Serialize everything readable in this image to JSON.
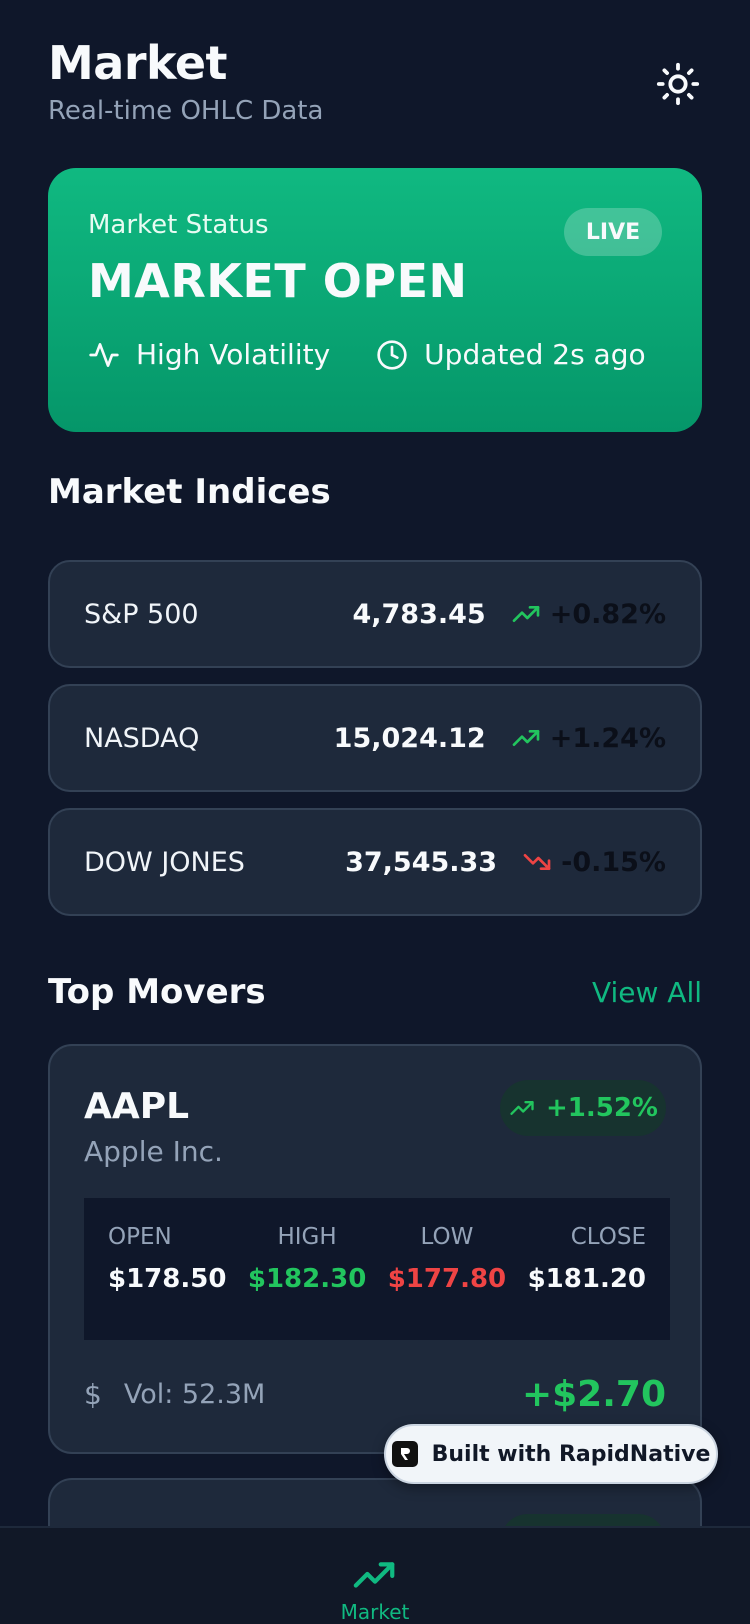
{
  "header": {
    "title": "Market",
    "subtitle": "Real-time OHLC Data",
    "theme_icon": "sun-icon"
  },
  "status": {
    "label": "Market Status",
    "value": "MARKET OPEN",
    "badge": "LIVE",
    "volatility": "High Volatility",
    "updated": "Updated 2s ago",
    "gradient_top": "#10b981",
    "gradient_bottom": "#059669"
  },
  "indices": {
    "title": "Market Indices",
    "items": [
      {
        "name": "S&P 500",
        "value": "4,783.45",
        "change": "+0.82%",
        "direction": "up"
      },
      {
        "name": "NASDAQ",
        "value": "15,024.12",
        "change": "+1.24%",
        "direction": "up"
      },
      {
        "name": "DOW JONES",
        "value": "37,545.33",
        "change": "-0.15%",
        "direction": "down"
      }
    ]
  },
  "movers": {
    "title": "Top Movers",
    "view_all": "View All",
    "items": [
      {
        "ticker": "AAPL",
        "company": "Apple Inc.",
        "change": "+1.52%",
        "ohlc": {
          "open_label": "OPEN",
          "open": "$178.50",
          "high_label": "HIGH",
          "high": "$182.30",
          "low_label": "LOW",
          "low": "$177.80",
          "close_label": "CLOSE",
          "close": "$181.20"
        },
        "currency_icon": "$",
        "volume": "Vol: 52.3M",
        "net_change": "+$2.70"
      }
    ]
  },
  "built_with": "Built with RapidNative",
  "tab_bar": {
    "items": [
      {
        "label": "Market",
        "icon": "trending-up-icon"
      }
    ]
  },
  "colors": {
    "background": "#0f172a",
    "card": "#1e293b",
    "positive": "#22c55e",
    "negative": "#ef4444",
    "accent": "#10b981"
  }
}
